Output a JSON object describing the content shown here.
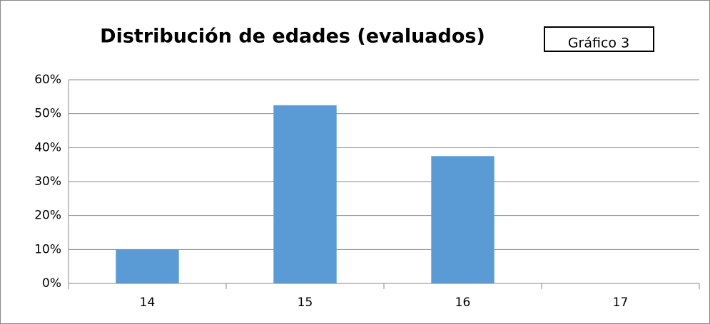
{
  "chart_data": {
    "type": "bar",
    "title": "Distribución de edades (evaluados)",
    "annotation": "Gráfico 3",
    "categories": [
      "14",
      "15",
      "16",
      "17"
    ],
    "values": [
      10,
      52.5,
      37.5,
      0
    ],
    "color": "#5b9bd5",
    "ylim": [
      0,
      60
    ],
    "yticks": [
      {
        "value": 0,
        "label": "0%"
      },
      {
        "value": 10,
        "label": "10%"
      },
      {
        "value": 20,
        "label": "20%"
      },
      {
        "value": 30,
        "label": "30%"
      },
      {
        "value": 40,
        "label": "40%"
      },
      {
        "value": 50,
        "label": "50%"
      },
      {
        "value": 60,
        "label": "60%"
      }
    ],
    "grid": true
  }
}
